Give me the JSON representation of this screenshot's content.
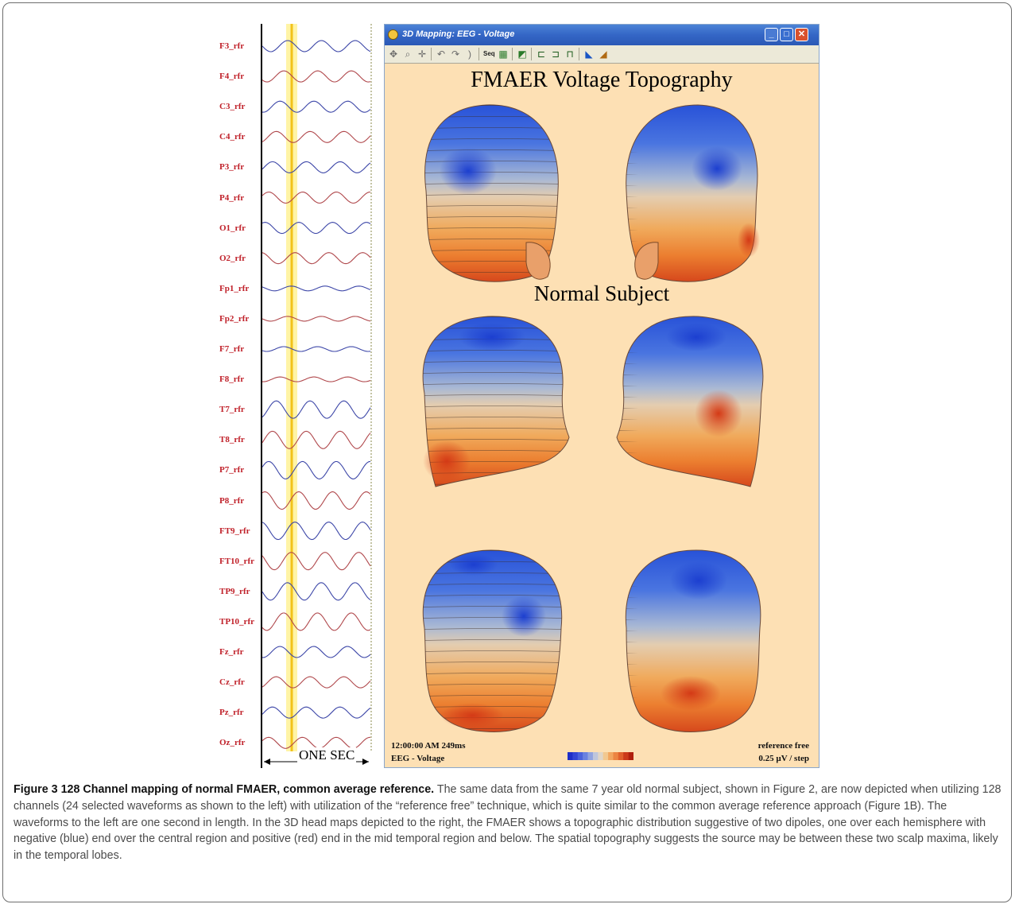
{
  "figure": {
    "channels": [
      "F3_rfr",
      "F4_rfr",
      "C3_rfr",
      "C4_rfr",
      "P3_rfr",
      "P4_rfr",
      "O1_rfr",
      "O2_rfr",
      "Fp1_rfr",
      "Fp2_rfr",
      "F7_rfr",
      "F8_rfr",
      "T7_rfr",
      "T8_rfr",
      "P7_rfr",
      "P8_rfr",
      "FT9_rfr",
      "FT10_rfr",
      "TP9_rfr",
      "TP10_rfr",
      "Fz_rfr",
      "Cz_rfr",
      "Pz_rfr",
      "Oz_rfr"
    ],
    "scale_label": "ONE SEC",
    "window": {
      "title": "3D Mapping: EEG - Voltage",
      "map_title": "FMAER Voltage Topography",
      "subject_label": "Normal Subject",
      "footer_time": "12:00:00 AM 249ms",
      "footer_mode": "EEG - Voltage",
      "footer_ref": "reference free",
      "footer_step": "0.25 µV / step"
    }
  },
  "caption": {
    "title": "Figure 3 128 Channel mapping of normal FMAER, common average reference.",
    "body": "The same data from the same 7 year old normal subject, shown in Figure 2, are now depicted when utilizing 128 channels (24 selected waveforms as shown to the left) with utilization of the “reference free” technique, which is quite similar to the common average reference approach (Figure 1B). The waveforms to the left are one second in length. In the 3D head maps depicted to the right, the FMAER shows a topographic distribution suggestive of two dipoles, one over each hemisphere with negative (blue) end over the central region and positive (red) end in the mid temporal region and below. The spatial topography suggests the source may be between these two scalp maxima, likely in the temporal lobes."
  },
  "colors": {
    "label_red": "#c0212a",
    "wave_blue": "#3d47a8",
    "wave_red": "#b0484c",
    "map_background": "#fde0b4",
    "negative_blue": "#1f4fd6",
    "positive_red": "#d8401a"
  }
}
